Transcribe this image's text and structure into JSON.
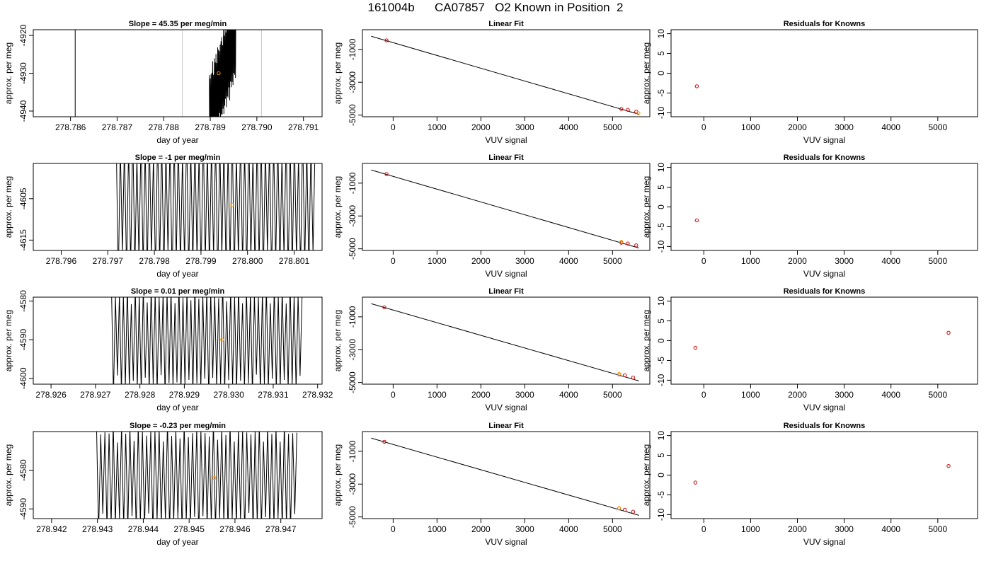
{
  "title": "161004b      CA07857   O2 Known in Position  2",
  "colors": {
    "trace": "#000000",
    "grey_line": "#c8c8c8",
    "known_point": "#cc0000",
    "highlight_point": "#ff9900",
    "frame": "#000000"
  },
  "chart_data": [
    {
      "type": "line",
      "panel": "timeseries",
      "row": 1,
      "title": "Slope =  45.35  per meg/min",
      "xlabel": "day of year",
      "ylabel": "approx. per meg",
      "xlim": [
        278.7852,
        278.7914
      ],
      "ylim": [
        -4941.5,
        -4918.5
      ],
      "xticks": [
        "278.786",
        "278.787",
        "278.788",
        "278.789",
        "278.790",
        "278.791"
      ],
      "yticks": [
        "-4920",
        "-4930",
        "-4940"
      ],
      "black_vlines": [
        278.7861
      ],
      "grey_vlines": [
        278.7884,
        278.7901
      ],
      "trace": {
        "x_start": 278.78898,
        "x_end": 278.78955,
        "y_start": -4941.5,
        "y_end": -4919.5,
        "amplitude": 10,
        "cycles": 32
      },
      "highlight": {
        "x": 278.78918,
        "y": -4930
      }
    },
    {
      "type": "line",
      "panel": "timeseries",
      "row": 2,
      "title": "Slope =  -1  per meg/min",
      "xlabel": "day of year",
      "ylabel": "approx. per meg",
      "xlim": [
        278.7954,
        278.8016
      ],
      "ylim": [
        -4617.5,
        -4596.5
      ],
      "xticks": [
        "278.796",
        "278.797",
        "278.798",
        "278.799",
        "278.800",
        "278.801"
      ],
      "yticks": [
        "-4605",
        "-4615"
      ],
      "black_vlines": [],
      "grey_vlines": [],
      "trace": {
        "x_start": 278.79718,
        "x_end": 278.80145,
        "y_start": -4606.5,
        "y_end": -4606.5,
        "amplitude": 15,
        "cycles": 48
      },
      "highlight": {
        "x": 278.79967,
        "y": -4606.5
      }
    },
    {
      "type": "line",
      "panel": "timeseries",
      "row": 3,
      "title": "Slope =  0.01  per meg/min",
      "xlabel": "day of year",
      "ylabel": "approx. per meg",
      "xlim": [
        278.9256,
        278.9321
      ],
      "ylim": [
        -4601.5,
        -4579
      ],
      "xticks": [
        "278.926",
        "278.927",
        "278.928",
        "278.929",
        "278.930",
        "278.931",
        "278.932"
      ],
      "yticks": [
        "-4580",
        "-4590",
        "-4600"
      ],
      "black_vlines": [],
      "grey_vlines": [],
      "trace": {
        "x_start": 278.92736,
        "x_end": 278.93165,
        "y_start": -4590,
        "y_end": -4590,
        "amplitude": 12,
        "cycles": 48
      },
      "highlight": {
        "x": 278.92985,
        "y": -4590
      }
    },
    {
      "type": "line",
      "panel": "timeseries",
      "row": 4,
      "title": "Slope =  -0.23  per meg/min",
      "xlabel": "day of year",
      "ylabel": "approx. per meg",
      "xlim": [
        278.9416,
        278.9479
      ],
      "ylim": [
        -4592.5,
        -4570
      ],
      "xticks": [
        "278.942",
        "278.943",
        "278.944",
        "278.945",
        "278.946",
        "278.947"
      ],
      "yticks": [
        "-4580",
        "-4590"
      ],
      "black_vlines": [],
      "grey_vlines": [],
      "trace": {
        "x_start": 278.94298,
        "x_end": 278.94735,
        "y_start": -4582,
        "y_end": -4582,
        "amplitude": 12,
        "cycles": 48
      },
      "highlight": {
        "x": 278.94555,
        "y": -4582
      }
    },
    {
      "type": "line",
      "panel": "fit",
      "row": 1,
      "title": "Linear Fit",
      "xlabel": "VUV signal",
      "ylabel": "approx. per meg",
      "xlim": [
        -700,
        5850
      ],
      "ylim": [
        -5100,
        200
      ],
      "xticks": [
        0,
        1000,
        2000,
        3000,
        4000,
        5000
      ],
      "yticks": [
        -1000,
        -3000,
        -5000
      ],
      "line": {
        "x": [
          -500,
          5600
        ],
        "y": [
          -200,
          -4950
        ]
      },
      "knowns": [
        {
          "x": -150,
          "y": -450
        },
        {
          "x": 5200,
          "y": -4630
        },
        {
          "x": 5350,
          "y": -4680
        },
        {
          "x": 5540,
          "y": -4790
        }
      ],
      "highlight": [
        {
          "x": 5590,
          "y": -4880
        }
      ]
    },
    {
      "type": "line",
      "panel": "fit",
      "row": 2,
      "title": "Linear Fit",
      "xlabel": "VUV signal",
      "ylabel": "approx. per meg",
      "xlim": [
        -700,
        5850
      ],
      "ylim": [
        -5100,
        200
      ],
      "xticks": [
        0,
        1000,
        2000,
        3000,
        4000,
        5000
      ],
      "yticks": [
        -1000,
        -3000,
        -5000
      ],
      "line": {
        "x": [
          -500,
          5600
        ],
        "y": [
          -200,
          -4950
        ]
      },
      "knowns": [
        {
          "x": -150,
          "y": -450
        },
        {
          "x": 5200,
          "y": -4630
        },
        {
          "x": 5350,
          "y": -4680
        },
        {
          "x": 5540,
          "y": -4790
        }
      ],
      "highlight": [
        {
          "x": 5200,
          "y": -4580
        }
      ]
    },
    {
      "type": "line",
      "panel": "fit",
      "row": 3,
      "title": "Linear Fit",
      "xlabel": "VUV signal",
      "ylabel": "approx. per meg",
      "xlim": [
        -700,
        5850
      ],
      "ylim": [
        -5100,
        200
      ],
      "xticks": [
        0,
        1000,
        2000,
        3000,
        4000,
        5000
      ],
      "yticks": [
        -1000,
        -3000,
        -5000
      ],
      "line": {
        "x": [
          -500,
          5600
        ],
        "y": [
          -200,
          -4900
        ]
      },
      "knowns": [
        {
          "x": -200,
          "y": -420
        },
        {
          "x": 5150,
          "y": -4500
        },
        {
          "x": 5280,
          "y": -4560
        },
        {
          "x": 5470,
          "y": -4700
        }
      ],
      "highlight": [
        {
          "x": 5150,
          "y": -4480
        }
      ]
    },
    {
      "type": "line",
      "panel": "fit",
      "row": 4,
      "title": "Linear Fit",
      "xlabel": "VUV signal",
      "ylabel": "approx. per meg",
      "xlim": [
        -700,
        5850
      ],
      "ylim": [
        -5100,
        200
      ],
      "xticks": [
        0,
        1000,
        2000,
        3000,
        4000,
        5000
      ],
      "yticks": [
        -1000,
        -3000,
        -5000
      ],
      "line": {
        "x": [
          -500,
          5600
        ],
        "y": [
          -200,
          -4900
        ]
      },
      "knowns": [
        {
          "x": -200,
          "y": -420
        },
        {
          "x": 5150,
          "y": -4480
        },
        {
          "x": 5280,
          "y": -4560
        },
        {
          "x": 5470,
          "y": -4680
        }
      ],
      "highlight": [
        {
          "x": 5150,
          "y": -4460
        }
      ]
    },
    {
      "type": "scatter",
      "panel": "residuals",
      "row": 1,
      "title": "Residuals for Knowns",
      "xlabel": "VUV signal",
      "ylabel": "approx. per meg",
      "xlim": [
        -700,
        5850
      ],
      "ylim": [
        -11,
        11
      ],
      "xticks": [
        0,
        1000,
        2000,
        3000,
        4000,
        5000
      ],
      "yticks": [
        10,
        5,
        0,
        -5,
        -10
      ],
      "points": [
        {
          "x": -150,
          "y": -3.3
        }
      ]
    },
    {
      "type": "scatter",
      "panel": "residuals",
      "row": 2,
      "title": "Residuals for Knowns",
      "xlabel": "VUV signal",
      "ylabel": "approx. per meg",
      "xlim": [
        -700,
        5850
      ],
      "ylim": [
        -11,
        11
      ],
      "xticks": [
        0,
        1000,
        2000,
        3000,
        4000,
        5000
      ],
      "yticks": [
        10,
        5,
        0,
        -5,
        -10
      ],
      "points": [
        {
          "x": -150,
          "y": -3.4
        }
      ]
    },
    {
      "type": "scatter",
      "panel": "residuals",
      "row": 3,
      "title": "Residuals for Knowns",
      "xlabel": "VUV signal",
      "ylabel": "approx. per meg",
      "xlim": [
        -700,
        5850
      ],
      "ylim": [
        -11,
        11
      ],
      "xticks": [
        0,
        1000,
        2000,
        3000,
        4000,
        5000
      ],
      "yticks": [
        10,
        5,
        0,
        -5,
        -10
      ],
      "points": [
        {
          "x": -180,
          "y": -1.8
        },
        {
          "x": 5230,
          "y": 2.0
        }
      ]
    },
    {
      "type": "scatter",
      "panel": "residuals",
      "row": 4,
      "title": "Residuals for Knowns",
      "xlabel": "VUV signal",
      "ylabel": "approx. per meg",
      "xlim": [
        -700,
        5850
      ],
      "ylim": [
        -11,
        11
      ],
      "xticks": [
        0,
        1000,
        2000,
        3000,
        4000,
        5000
      ],
      "yticks": [
        10,
        5,
        0,
        -5,
        -10
      ],
      "points": [
        {
          "x": -180,
          "y": -1.9
        },
        {
          "x": 5230,
          "y": 2.3
        }
      ]
    }
  ]
}
